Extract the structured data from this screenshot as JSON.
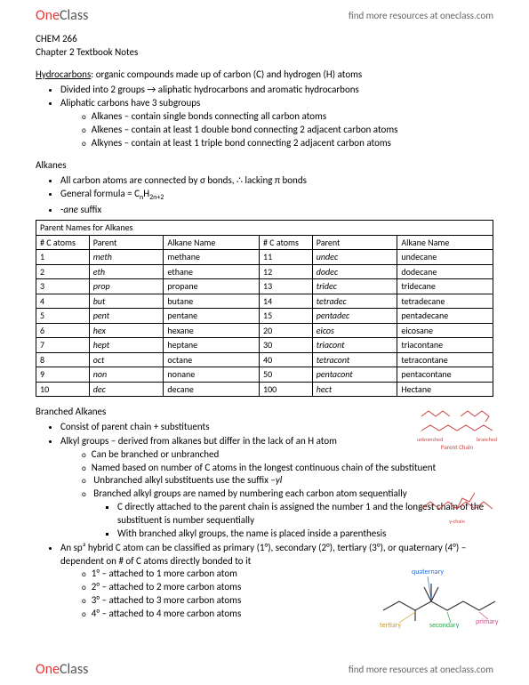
{
  "header": {
    "logo_left": "One",
    "logo_right": "Class",
    "tagline": "find more resources at oneclass.com"
  },
  "course": "CHEM 266",
  "chapter": "Chapter 2 Textbook Notes",
  "hydrocarbons_label": "Hydrocarbons",
  "hydrocarbons_def": ": organic compounds made up of carbon (C) and hydrogen (H) atoms",
  "hc_b1": "Divided into 2 groups → aliphatic hydrocarbons and aromatic hydrocarbons",
  "hc_b2": "Aliphatic carbons have 3 subgroups",
  "hc_sub1": "Alkanes – contain single bonds connecting all carbon atoms",
  "hc_sub2": "Alkenes – contain at least 1 double bond connecting 2 adjacent carbon atoms",
  "hc_sub3": "Alkynes – contain at least 1 triple bond connecting 2 adjacent carbon atoms",
  "alkanes_title": "Alkanes",
  "alk_b1": "All carbon atoms are connected by σ bonds, ∴ lacking π bonds",
  "alk_b2_pre": "General formula = C",
  "alk_b2_n": "n",
  "alk_b2_h": "H",
  "alk_b2_2n2": "2n+2",
  "alk_b3_pre": "-",
  "alk_b3_i": "ane",
  "alk_b3_post": " suffix",
  "parent_title": "Parent Names for Alkanes",
  "table": {
    "headers": [
      "# C atoms",
      "Parent",
      "Alkane Name",
      "# C atoms",
      "Parent",
      "Alkane Name"
    ],
    "rows": [
      [
        "1",
        "meth",
        "methane",
        "11",
        "undec",
        "undecane"
      ],
      [
        "2",
        "eth",
        "ethane",
        "12",
        "dodec",
        "dodecane"
      ],
      [
        "3",
        "prop",
        "propane",
        "13",
        "tridec",
        "tridecane"
      ],
      [
        "4",
        "but",
        "butane",
        "14",
        "tetradec",
        "tetradecane"
      ],
      [
        "5",
        "pent",
        "pentane",
        "15",
        "pentadec",
        "pentadecane"
      ],
      [
        "6",
        "hex",
        "hexane",
        "20",
        "eicos",
        "eicosane"
      ],
      [
        "7",
        "hept",
        "heptane",
        "30",
        "triacont",
        "triacontane"
      ],
      [
        "8",
        "oct",
        "octane",
        "40",
        "tetracont",
        "tetracontane"
      ],
      [
        "9",
        "non",
        "nonane",
        "50",
        "pentacont",
        "pentacontane"
      ],
      [
        "10",
        "dec",
        "decane",
        "100",
        "hect",
        "Hectane"
      ]
    ],
    "parent_italic_cols": [
      1,
      4
    ],
    "col_widths": [
      "10%",
      "14%",
      "18%",
      "10%",
      "16%",
      "18%"
    ],
    "border_color": "#000000",
    "font_size": 10
  },
  "branched_title": "Branched Alkanes",
  "br_b1": "Consist of parent chain + substituents",
  "br_b2": "Alkyl groups – derived from alkanes but differ in the lack of an H atom",
  "br_s1": "Can be branched or unbranched",
  "br_s2": "Named based on number of C atoms in the longest continuous chain of the substituent",
  "br_s3_pre": "Unbranched alkyl substituents use the suffix –",
  "br_s3_i": "yl",
  "br_s4": "Branched alkyl groups are named by numbering each carbon atom sequentially",
  "br_ss1": "C directly attached to the parent chain is assigned the number 1 and the longest chain of the substituent is number sequentially",
  "br_ss2": "With branched alkyl groups, the name is placed inside a parenthesis",
  "br_b3": "An sp³ hybrid C atom can be classified as primary (1°), secondary (2°), tertiary (3°), or quaternary (4°) – dependent on # of C atoms directly bonded to it",
  "deg1": "1° – attached to 1 more carbon atom",
  "deg2": "2° – attached to 2 more carbon atoms",
  "deg3": "3° – attached to 3 more carbon atoms",
  "deg4": "4° – attached to 4 more carbon atoms",
  "diag": {
    "parent_label": "Parent Chain",
    "unbranched": "unbranched",
    "branched": "branched",
    "ychain": "y-chain",
    "quaternary": "quaternary",
    "tertiary": "tertiary",
    "secondary": "secondary",
    "primary": "primary",
    "colors": {
      "zigzag": "#cc4444",
      "quaternary": "#2a6fd6",
      "tertiary": "#c99a2a",
      "secondary": "#2aa84a",
      "primary": "#d64a8a"
    }
  }
}
